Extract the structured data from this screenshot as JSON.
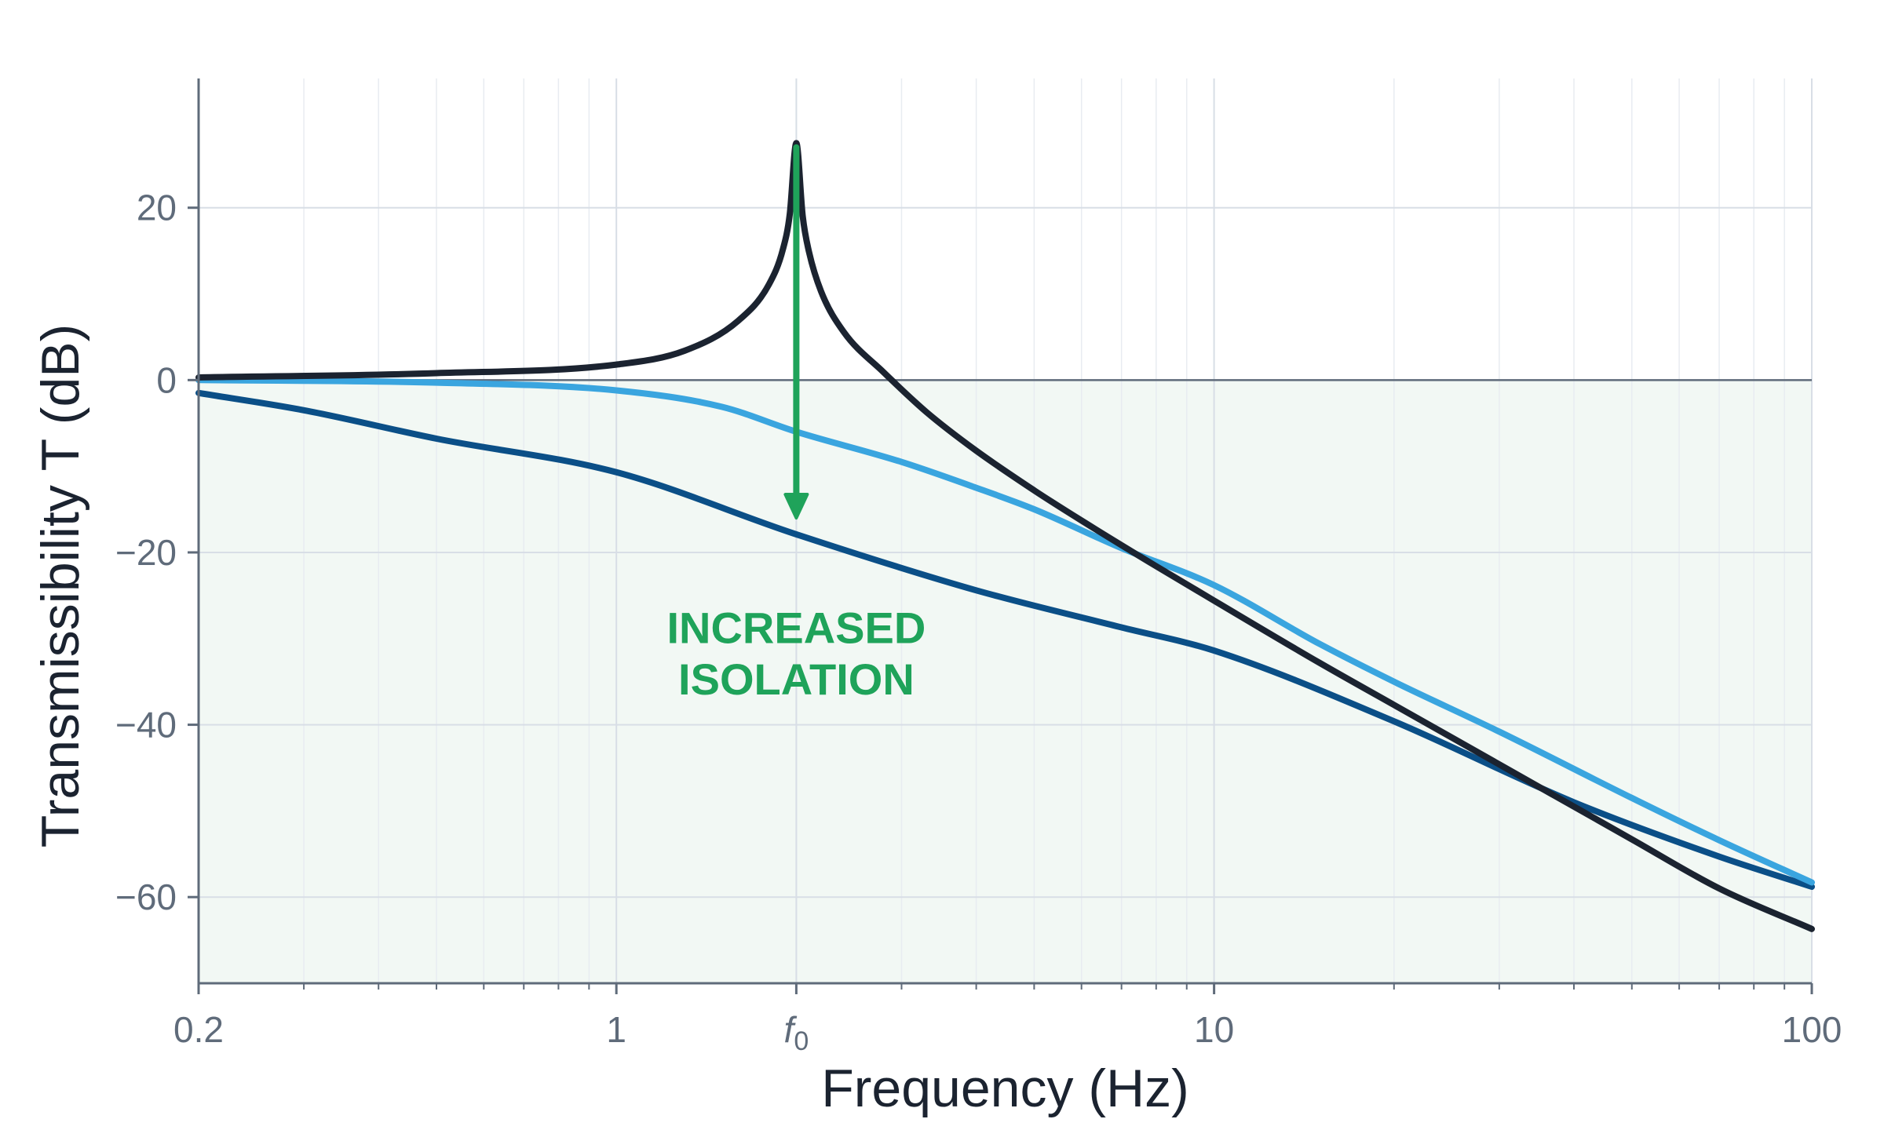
{
  "chart_data": {
    "type": "line",
    "title": "",
    "xlabel": "Frequency (Hz)",
    "ylabel": "Transmissibility T (dB)",
    "x_scale": "log",
    "xlim": [
      0.2,
      100
    ],
    "ylim": [
      -70,
      35
    ],
    "x_ticks": [
      {
        "value": 0.2,
        "label": "0.2"
      },
      {
        "value": 1,
        "label": "1"
      },
      {
        "value": 2,
        "label": "f",
        "subscript": "0"
      },
      {
        "value": 10,
        "label": "10"
      },
      {
        "value": 100,
        "label": "100"
      }
    ],
    "y_ticks": [
      {
        "value": 20,
        "label": "20"
      },
      {
        "value": 0,
        "label": "0"
      },
      {
        "value": -20,
        "label": "−20"
      },
      {
        "value": -40,
        "label": "−40"
      },
      {
        "value": -60,
        "label": "−60"
      }
    ],
    "grid": true,
    "shaded_region": {
      "from_y": 0,
      "to_y": -70,
      "color": "#f2f8f4"
    },
    "reference_line_y": 0,
    "series": [
      {
        "color": "#1b2330",
        "x": [
          0.2,
          0.5,
          1,
          1.3,
          1.6,
          1.8,
          1.9,
          1.95,
          2,
          2.05,
          2.1,
          2.2,
          2.4,
          2.8,
          3.3,
          4,
          5,
          6,
          8,
          10,
          15,
          20,
          30,
          50,
          70,
          100
        ],
        "y": [
          0.3,
          0.8,
          1.8,
          3.4,
          6.9,
          11.1,
          15.2,
          19.2,
          27.5,
          19.0,
          14.9,
          10.3,
          5.6,
          0.9,
          -3.7,
          -8.2,
          -12.8,
          -16.3,
          -21.6,
          -25.6,
          -32.8,
          -37.7,
          -44.6,
          -53.3,
          -59.0,
          -63.7
        ]
      },
      {
        "color": "#3aa5df",
        "x": [
          0.2,
          0.5,
          1,
          1.5,
          2,
          3,
          4,
          5,
          7,
          10,
          15,
          20,
          30,
          50,
          70,
          100
        ],
        "y": [
          0.0,
          -0.3,
          -1.2,
          -3.1,
          -6.0,
          -9.5,
          -12.5,
          -15.0,
          -19.5,
          -23.8,
          -30.6,
          -35.0,
          -40.8,
          -48.5,
          -53.4,
          -58.3
        ]
      },
      {
        "color": "#0b4f87",
        "x": [
          0.2,
          0.3,
          0.5,
          1,
          2,
          4,
          7,
          10,
          20,
          40,
          70,
          100
        ],
        "y": [
          -1.5,
          -3.5,
          -6.8,
          -10.7,
          -17.9,
          -24.4,
          -28.7,
          -31.4,
          -39.6,
          -49.0,
          -55.3,
          -58.8
        ]
      }
    ],
    "annotation": {
      "lines": [
        "INCREASED",
        "ISOLATION"
      ],
      "arrow_x": 2,
      "arrow_from_y": 27,
      "arrow_to_y": -16,
      "color": "#1fa35a"
    }
  }
}
